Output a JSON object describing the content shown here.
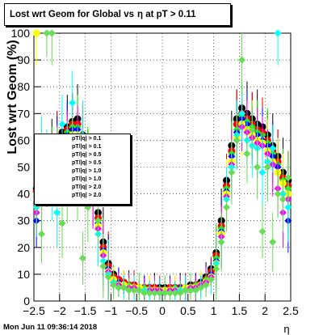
{
  "title_parts": [
    "Lost wrt Geom for Global vs",
    "η at pT > 0.11"
  ],
  "footer": {
    "timestamp": "Mon Jun 11 09:36:14 2018"
  },
  "legend": {
    "entries": [
      "pT/|q| > 0.1",
      "pT/|q| > 0.1",
      "pT/|q| > 0.5",
      "pT/|q| > 0.5",
      "pT/|q| > 1.0",
      "pT/|q| > 1.0",
      "pT/|q| > 2.0",
      "pT/|q| > 2.0"
    ]
  },
  "chart_data": {
    "type": "scatter",
    "title": "Lost wrt Geom for Global vs η at pT > 0.11",
    "xlabel": "η",
    "ylabel": "Lost wrt Geom (%)",
    "xlim": [
      -2.5,
      2.5
    ],
    "ylim": [
      0,
      100
    ],
    "xticks": [
      -2.5,
      -2,
      -1.5,
      -1,
      -0.5,
      0,
      0.5,
      1,
      1.5,
      2,
      2.5
    ],
    "xtick_labels": [
      "−2.5",
      "−2",
      "−1.5",
      "−1",
      "−0.5",
      "0",
      "0.5",
      "1",
      "1.5",
      "2",
      "2.5"
    ],
    "yticks": [
      0,
      10,
      20,
      30,
      40,
      50,
      60,
      70,
      80,
      90,
      100
    ],
    "grid": true,
    "legend_position": "left-middle",
    "colors": {
      "black": "#000000",
      "red": "#ff0000",
      "green": "#00ff00",
      "blue": "#0000ff",
      "yellow": "#ffff00",
      "magenta": "#ff00ff",
      "cyan": "#00ffff",
      "lightgreen": "#66dd55"
    },
    "series": [
      {
        "color": "black",
        "marker": "circle",
        "x": [
          -2.45,
          -2.35,
          -2.25,
          -2.15,
          -2.05,
          -1.95,
          -1.85,
          -1.75,
          -1.65,
          -1.55,
          -1.45,
          -1.35,
          -1.25,
          -1.15,
          -1.05,
          -0.95,
          -0.85,
          -0.75,
          -0.65,
          -0.55,
          -0.45,
          -0.35,
          -0.25,
          -0.15,
          -0.05,
          0.05,
          0.15,
          0.25,
          0.35,
          0.45,
          0.55,
          0.65,
          0.75,
          0.85,
          0.95,
          1.05,
          1.15,
          1.25,
          1.35,
          1.45,
          1.55,
          1.65,
          1.75,
          1.85,
          1.95,
          2.05,
          2.15,
          2.25,
          2.35,
          2.45
        ],
        "y": [
          42,
          47,
          52,
          55,
          60,
          63,
          65,
          67,
          68,
          62,
          55,
          45,
          33,
          22,
          14,
          10,
          8,
          7,
          6,
          6,
          5,
          5,
          5,
          5,
          5,
          5,
          5,
          5,
          5,
          5,
          6,
          6,
          7,
          9,
          12,
          18,
          30,
          45,
          58,
          68,
          72,
          70,
          68,
          66,
          65,
          62,
          58,
          54,
          48,
          45
        ]
      },
      {
        "color": "red",
        "marker": "circle",
        "x": [
          -2.45,
          -2.35,
          -2.25,
          -2.15,
          -2.05,
          -1.95,
          -1.85,
          -1.75,
          -1.65,
          -1.55,
          -1.45,
          -1.35,
          -1.25,
          -1.15,
          -1.05,
          -0.95,
          -0.85,
          -0.75,
          -0.65,
          -0.55,
          -0.45,
          -0.35,
          -0.25,
          -0.15,
          -0.05,
          0.05,
          0.15,
          0.25,
          0.35,
          0.45,
          0.55,
          0.65,
          0.75,
          0.85,
          0.95,
          1.05,
          1.15,
          1.25,
          1.35,
          1.45,
          1.55,
          1.65,
          1.75,
          1.85,
          1.95,
          2.05,
          2.15,
          2.25,
          2.35,
          2.45
        ],
        "y": [
          41,
          46,
          50,
          54,
          58,
          61,
          64,
          66,
          66,
          60,
          53,
          43,
          31,
          20,
          13,
          9,
          8,
          7,
          6,
          6,
          5,
          5,
          5,
          5,
          4,
          4,
          5,
          5,
          5,
          5,
          5,
          6,
          6,
          8,
          11,
          17,
          28,
          43,
          56,
          66,
          70,
          68,
          66,
          64,
          63,
          60,
          56,
          52,
          46,
          43
        ]
      },
      {
        "color": "green",
        "marker": "diamond",
        "x": [
          -2.45,
          -2.35,
          -2.25,
          -2.15,
          -2.05,
          -1.95,
          -1.85,
          -1.75,
          -1.65,
          -1.55,
          -1.45,
          -1.35,
          -1.25,
          -1.15,
          -1.05,
          -0.95,
          -0.85,
          -0.75,
          -0.65,
          -0.55,
          -0.45,
          -0.35,
          -0.25,
          -0.15,
          -0.05,
          0.05,
          0.15,
          0.25,
          0.35,
          0.45,
          0.55,
          0.65,
          0.75,
          0.85,
          0.95,
          1.05,
          1.15,
          1.25,
          1.35,
          1.45,
          1.55,
          1.65,
          1.75,
          1.85,
          1.95,
          2.05,
          2.15,
          2.25,
          2.35,
          2.45
        ],
        "y": [
          40,
          45,
          50,
          53,
          58,
          60,
          63,
          65,
          65,
          58,
          52,
          42,
          30,
          19,
          12,
          8,
          7,
          6,
          6,
          5,
          5,
          5,
          4,
          4,
          4,
          4,
          4,
          5,
          5,
          5,
          5,
          6,
          6,
          8,
          10,
          16,
          27,
          42,
          55,
          64,
          69,
          67,
          65,
          63,
          62,
          59,
          55,
          51,
          45,
          42
        ]
      },
      {
        "color": "blue",
        "marker": "diamond",
        "x": [
          -2.45,
          -2.35,
          -2.25,
          -2.15,
          -2.05,
          -1.95,
          -1.85,
          -1.75,
          -1.65,
          -1.55,
          -1.45,
          -1.35,
          -1.25,
          -1.15,
          -1.05,
          -0.95,
          -0.85,
          -0.75,
          -0.65,
          -0.55,
          -0.45,
          -0.35,
          -0.25,
          -0.15,
          -0.05,
          0.05,
          0.15,
          0.25,
          0.35,
          0.45,
          0.55,
          0.65,
          0.75,
          0.85,
          0.95,
          1.05,
          1.15,
          1.25,
          1.35,
          1.45,
          1.55,
          1.65,
          1.75,
          1.85,
          1.95,
          2.05,
          2.15,
          2.25,
          2.35,
          2.45
        ],
        "y": [
          30,
          40,
          48,
          52,
          57,
          59,
          62,
          64,
          64,
          57,
          51,
          41,
          29,
          19,
          12,
          8,
          7,
          6,
          5,
          5,
          5,
          4,
          4,
          4,
          4,
          4,
          4,
          4,
          5,
          5,
          5,
          5,
          6,
          7,
          10,
          15,
          26,
          41,
          54,
          63,
          68,
          66,
          64,
          62,
          60,
          58,
          54,
          50,
          40,
          30
        ]
      },
      {
        "color": "yellow",
        "marker": "circle",
        "x": [
          -2.45,
          -2.35,
          -2.25,
          -2.15,
          -2.05,
          -1.95,
          -1.85,
          -1.75,
          -1.65,
          -1.55,
          -1.45,
          -1.35,
          -1.25,
          -1.15,
          -1.05,
          -0.95,
          -0.85,
          -0.75,
          -0.65,
          -0.55,
          -0.45,
          -0.35,
          -0.25,
          -0.15,
          -0.05,
          0.05,
          0.15,
          0.25,
          0.35,
          0.45,
          0.55,
          0.65,
          0.75,
          0.85,
          0.95,
          1.05,
          1.15,
          1.25,
          1.35,
          1.45,
          1.55,
          1.65,
          1.75,
          1.85,
          1.95,
          2.05,
          2.15,
          2.25,
          2.35,
          2.45
        ],
        "y": [
          100,
          43,
          48,
          51,
          56,
          58,
          60,
          62,
          62,
          55,
          50,
          40,
          28,
          18,
          11,
          8,
          6,
          6,
          5,
          5,
          5,
          4,
          4,
          4,
          4,
          4,
          4,
          4,
          4,
          5,
          5,
          5,
          6,
          7,
          9,
          14,
          25,
          40,
          52,
          61,
          66,
          64,
          62,
          60,
          59,
          56,
          52,
          48,
          44,
          40
        ]
      },
      {
        "color": "magenta",
        "marker": "diamond",
        "x": [
          -2.45,
          -2.35,
          -2.25,
          -2.15,
          -2.05,
          -1.95,
          -1.85,
          -1.75,
          -1.65,
          -1.55,
          -1.45,
          -1.35,
          -1.25,
          -1.15,
          -1.05,
          -0.95,
          -0.85,
          -0.75,
          -0.65,
          -0.55,
          -0.45,
          -0.35,
          -0.25,
          -0.15,
          -0.05,
          0.05,
          0.15,
          0.25,
          0.35,
          0.45,
          0.55,
          0.65,
          0.75,
          0.85,
          0.95,
          1.05,
          1.15,
          1.25,
          1.35,
          1.45,
          1.55,
          1.65,
          1.75,
          1.85,
          1.95,
          2.05,
          2.15,
          2.25,
          2.35,
          2.45
        ],
        "y": [
          33,
          38,
          45,
          50,
          55,
          57,
          59,
          61,
          60,
          54,
          48,
          39,
          27,
          17,
          11,
          7,
          6,
          5,
          5,
          5,
          4,
          4,
          4,
          4,
          4,
          3,
          4,
          4,
          4,
          4,
          5,
          5,
          6,
          7,
          9,
          14,
          24,
          39,
          51,
          60,
          65,
          63,
          61,
          59,
          58,
          55,
          51,
          42,
          33,
          38
        ]
      },
      {
        "color": "cyan",
        "marker": "diamond",
        "x": [
          -2.45,
          -2.35,
          -2.25,
          -2.15,
          -2.05,
          -1.95,
          -1.85,
          -1.75,
          -1.65,
          -1.55,
          -1.45,
          -1.35,
          -1.25,
          -1.15,
          -1.05,
          -0.95,
          -0.85,
          -0.75,
          -0.65,
          -0.55,
          -0.45,
          -0.35,
          -0.25,
          -0.15,
          -0.05,
          0.05,
          0.15,
          0.25,
          0.35,
          0.45,
          0.55,
          0.65,
          0.75,
          0.85,
          0.95,
          1.05,
          1.15,
          1.25,
          1.35,
          1.45,
          1.55,
          1.65,
          1.75,
          1.85,
          1.95,
          2.05,
          2.15,
          2.25,
          2.35,
          2.45
        ],
        "y": [
          35,
          60,
          52,
          40,
          33,
          66,
          58,
          74,
          55,
          62,
          45,
          50,
          25,
          15,
          10,
          7,
          5,
          5,
          4,
          4,
          4,
          4,
          3,
          3,
          3,
          3,
          3,
          3,
          4,
          4,
          4,
          4,
          5,
          6,
          8,
          14,
          22,
          38,
          50,
          62,
          70,
          60,
          58,
          57,
          48,
          52,
          57,
          100,
          40,
          35
        ]
      },
      {
        "color": "lightgreen",
        "marker": "diamond",
        "x": [
          -2.45,
          -2.35,
          -2.25,
          -2.15,
          -2.05,
          -1.95,
          -1.85,
          -1.75,
          -1.65,
          -1.55,
          -1.45,
          -1.35,
          -1.25,
          -1.15,
          -1.05,
          -0.95,
          -0.85,
          -0.75,
          -0.65,
          -0.55,
          -0.45,
          -0.35,
          -0.25,
          -0.15,
          -0.05,
          0.05,
          0.15,
          0.25,
          0.35,
          0.45,
          0.55,
          0.65,
          0.75,
          0.85,
          0.95,
          1.05,
          1.15,
          1.25,
          1.35,
          1.45,
          1.55,
          1.65,
          1.75,
          1.85,
          1.95,
          2.05,
          2.15,
          2.25,
          2.35,
          2.45
        ],
        "y": [
          38,
          25,
          100,
          100,
          55,
          29,
          40,
          60,
          42,
          16,
          35,
          50,
          30,
          13,
          9,
          6,
          5,
          5,
          4,
          4,
          4,
          3,
          3,
          3,
          3,
          3,
          3,
          3,
          3,
          4,
          4,
          4,
          5,
          6,
          8,
          12,
          22,
          35,
          48,
          60,
          90,
          55,
          64,
          50,
          26,
          50,
          22,
          40,
          38,
          46
        ]
      }
    ]
  }
}
